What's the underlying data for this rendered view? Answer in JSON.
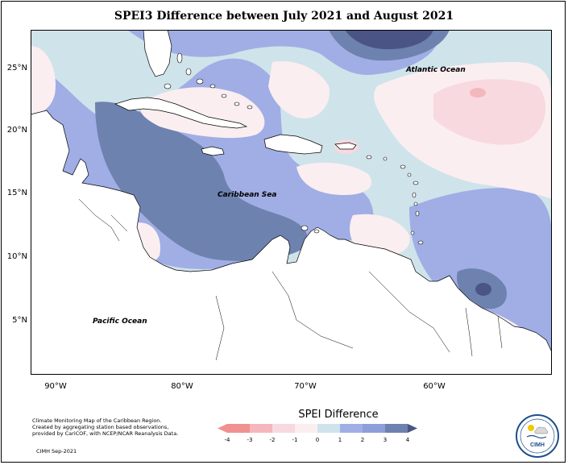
{
  "title": "SPEI3 Difference between July 2021 and August 2021",
  "map_labels": {
    "atlantic": "Atlantic Ocean",
    "caribbean": "Caribbean Sea",
    "pacific": "Pacific Ocean"
  },
  "longitude_labels": [
    "90°W",
    "80°W",
    "70°W",
    "60°W"
  ],
  "latitude_labels": [
    "25°N",
    "20°N",
    "15°N",
    "10°N",
    "5°N"
  ],
  "legend": {
    "title": "SPEI Difference",
    "ticks": [
      "-4",
      "-3",
      "-2",
      "-1",
      "0",
      "1",
      "2",
      "3",
      "4"
    ],
    "colors": [
      "#f09090",
      "#f3b7bd",
      "#f8d9df",
      "#fbeef0",
      "#cfe3ea",
      "#a0aee5",
      "#8d9fd9",
      "#6d82ae",
      "#4a5585"
    ]
  },
  "caption_lines": [
    "Climate Monitoring Map of the Caribbean Region.",
    "Created by aggregating station based observations,",
    "provided by CariCOF, with NCEP/NCAR Reanalysis Data."
  ],
  "credit": "CIMH  Sep-2021",
  "logo_text": "CIMH"
}
